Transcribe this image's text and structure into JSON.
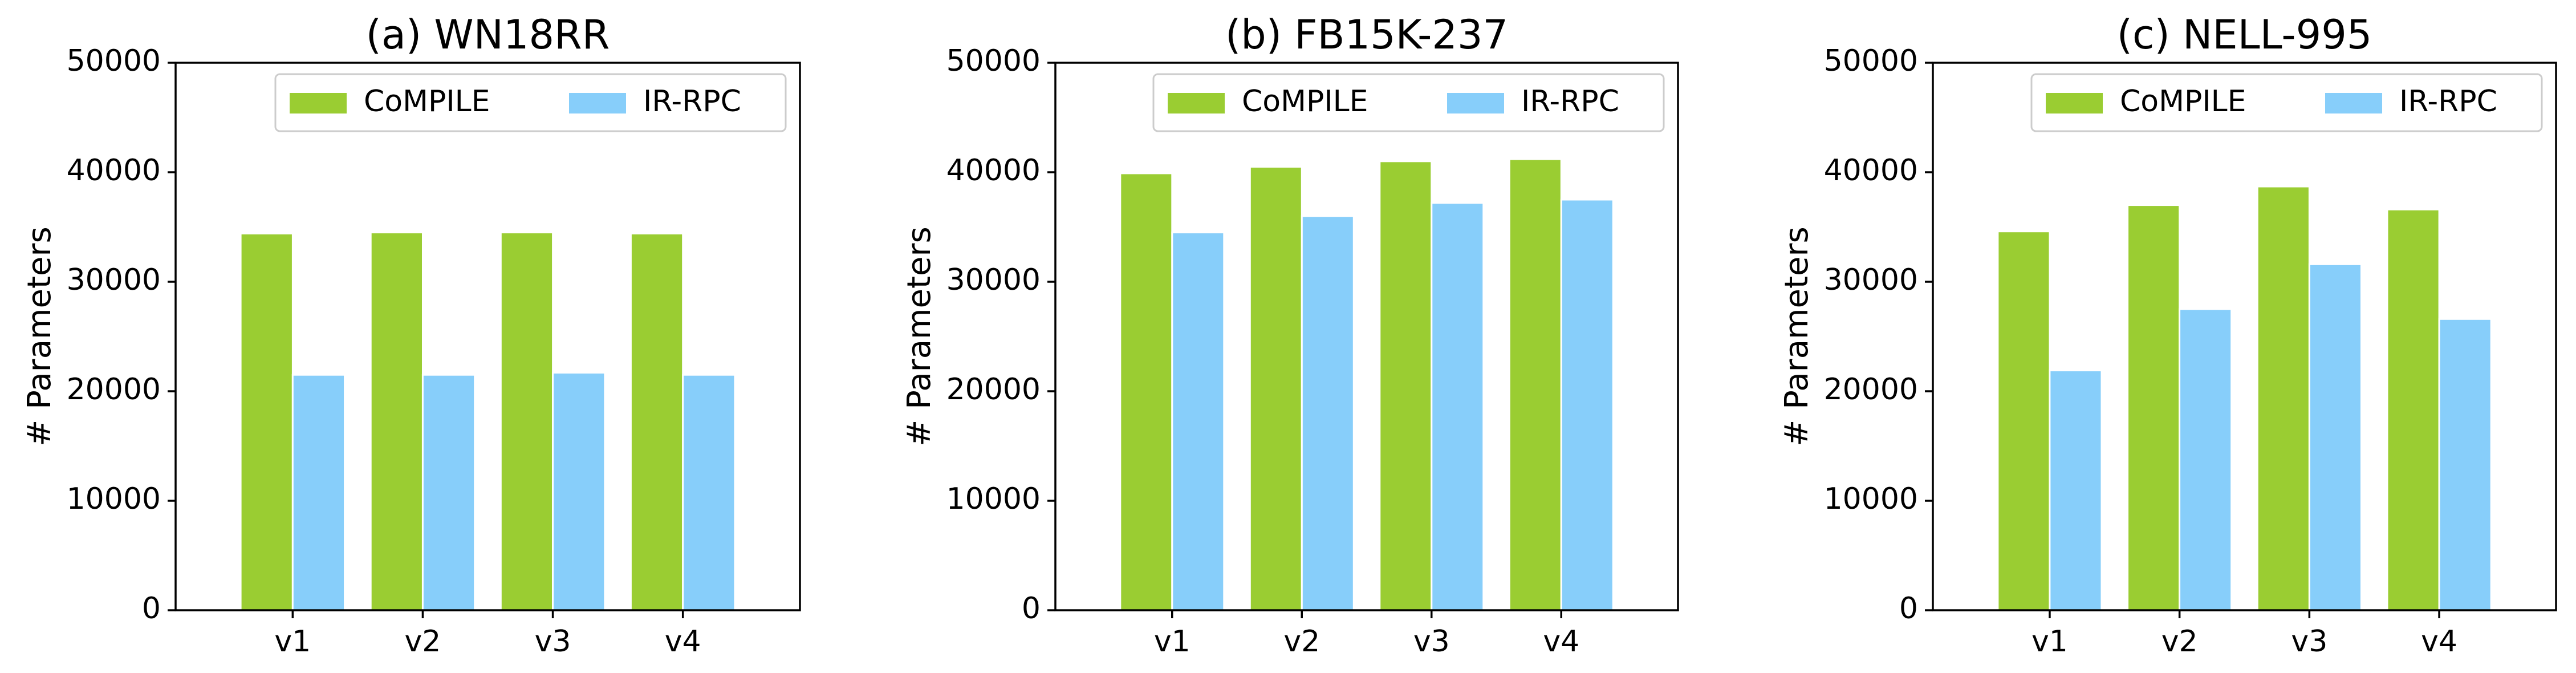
{
  "chart_data": [
    {
      "type": "bar",
      "title": "(a) WN18RR",
      "xlabel": "",
      "ylabel": "# Parameters",
      "categories": [
        "v1",
        "v2",
        "v3",
        "v4"
      ],
      "ylim": [
        0,
        50000
      ],
      "yticks": [
        0,
        10000,
        20000,
        30000,
        40000,
        50000
      ],
      "grid": false,
      "legend": "top-right",
      "series": [
        {
          "name": "CoMPILE",
          "color": "#9acd32",
          "values": [
            34400,
            34500,
            34500,
            34400
          ]
        },
        {
          "name": "IR-RPC",
          "color": "#87cefa",
          "values": [
            21500,
            21500,
            21700,
            21500
          ]
        }
      ]
    },
    {
      "type": "bar",
      "title": "(b) FB15K-237",
      "xlabel": "",
      "ylabel": "# Parameters",
      "categories": [
        "v1",
        "v2",
        "v3",
        "v4"
      ],
      "ylim": [
        0,
        50000
      ],
      "yticks": [
        0,
        10000,
        20000,
        30000,
        40000,
        50000
      ],
      "grid": false,
      "legend": "top-right",
      "series": [
        {
          "name": "CoMPILE",
          "color": "#9acd32",
          "values": [
            39900,
            40500,
            41000,
            41200
          ]
        },
        {
          "name": "IR-RPC",
          "color": "#87cefa",
          "values": [
            34500,
            36000,
            37200,
            37500
          ]
        }
      ]
    },
    {
      "type": "bar",
      "title": "(c) NELL-995",
      "xlabel": "",
      "ylabel": "# Parameters",
      "categories": [
        "v1",
        "v2",
        "v3",
        "v4"
      ],
      "ylim": [
        0,
        50000
      ],
      "yticks": [
        0,
        10000,
        20000,
        30000,
        40000,
        50000
      ],
      "grid": false,
      "legend": "top-right",
      "series": [
        {
          "name": "CoMPILE",
          "color": "#9acd32",
          "values": [
            34600,
            37000,
            38700,
            36600
          ]
        },
        {
          "name": "IR-RPC",
          "color": "#87cefa",
          "values": [
            21900,
            27500,
            31600,
            26600
          ]
        }
      ]
    }
  ]
}
